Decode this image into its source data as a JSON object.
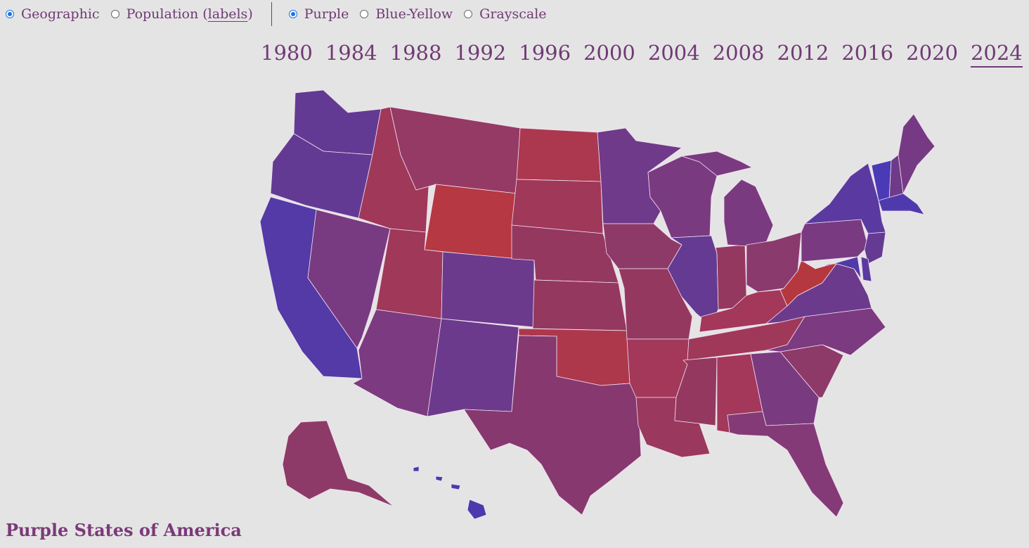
{
  "controls": {
    "projection": [
      {
        "label": "Geographic",
        "selected": true
      },
      {
        "label_prefix": "Population (",
        "label_link": "labels",
        "label_suffix": ")",
        "selected": false
      }
    ],
    "palette": [
      {
        "label": "Purple",
        "selected": true
      },
      {
        "label": "Blue-Yellow",
        "selected": false
      },
      {
        "label": "Grayscale",
        "selected": false
      }
    ]
  },
  "years": [
    "1980",
    "1984",
    "1988",
    "1992",
    "1996",
    "2000",
    "2004",
    "2008",
    "2012",
    "2016",
    "2020",
    "2024"
  ],
  "active_year": "2024",
  "title": "Purple States of America",
  "colors": {
    "text": "#6f3a75",
    "background": "#e5e4e4",
    "selected_radio": "#1a73e8"
  },
  "states": [
    {
      "name": "WA",
      "color": "#633a93"
    },
    {
      "name": "OR",
      "color": "#633a93"
    },
    {
      "name": "CA",
      "color": "#533aa6"
    },
    {
      "name": "NV",
      "color": "#783a80"
    },
    {
      "name": "ID",
      "color": "#a0385a"
    },
    {
      "name": "MT",
      "color": "#953a65"
    },
    {
      "name": "WY",
      "color": "#b53843"
    },
    {
      "name": "UT",
      "color": "#a0385a"
    },
    {
      "name": "CO",
      "color": "#6c3a8c"
    },
    {
      "name": "AZ",
      "color": "#7c3a80"
    },
    {
      "name": "NM",
      "color": "#6c3a8c"
    },
    {
      "name": "ND",
      "color": "#ab384f"
    },
    {
      "name": "SD",
      "color": "#a0385a"
    },
    {
      "name": "NE",
      "color": "#95385f"
    },
    {
      "name": "KS",
      "color": "#95385f"
    },
    {
      "name": "OK",
      "color": "#ad384c"
    },
    {
      "name": "TX",
      "color": "#87386f"
    },
    {
      "name": "MN",
      "color": "#6f3a89"
    },
    {
      "name": "IA",
      "color": "#8e3a68"
    },
    {
      "name": "MO",
      "color": "#95385f"
    },
    {
      "name": "AR",
      "color": "#a3385a"
    },
    {
      "name": "LA",
      "color": "#9a385d"
    },
    {
      "name": "WI",
      "color": "#7a3a80"
    },
    {
      "name": "IL",
      "color": "#643a93"
    },
    {
      "name": "IN",
      "color": "#95385f"
    },
    {
      "name": "MI",
      "color": "#7a3a80"
    },
    {
      "name": "OH",
      "color": "#8a3a6c"
    },
    {
      "name": "KY",
      "color": "#a3385a"
    },
    {
      "name": "TN",
      "color": "#a0385a"
    },
    {
      "name": "MS",
      "color": "#95385f"
    },
    {
      "name": "AL",
      "color": "#a3385a"
    },
    {
      "name": "GA",
      "color": "#7a3a80"
    },
    {
      "name": "FL",
      "color": "#833a77"
    },
    {
      "name": "SC",
      "color": "#8e3a68"
    },
    {
      "name": "NC",
      "color": "#7c3a80"
    },
    {
      "name": "VA",
      "color": "#6c3a8c"
    },
    {
      "name": "WV",
      "color": "#b5383f"
    },
    {
      "name": "PA",
      "color": "#793a82"
    },
    {
      "name": "NY",
      "color": "#5a3aa0"
    },
    {
      "name": "VT",
      "color": "#4a3ab5"
    },
    {
      "name": "NH",
      "color": "#6f3a89"
    },
    {
      "name": "ME",
      "color": "#753a83"
    },
    {
      "name": "MA",
      "color": "#4f3aad"
    },
    {
      "name": "NJ",
      "color": "#643a93"
    },
    {
      "name": "MD",
      "color": "#4f3aa8"
    },
    {
      "name": "DE",
      "color": "#5a3aa0"
    },
    {
      "name": "AK",
      "color": "#8e3a68"
    },
    {
      "name": "HI",
      "color": "#4a3aad"
    }
  ]
}
